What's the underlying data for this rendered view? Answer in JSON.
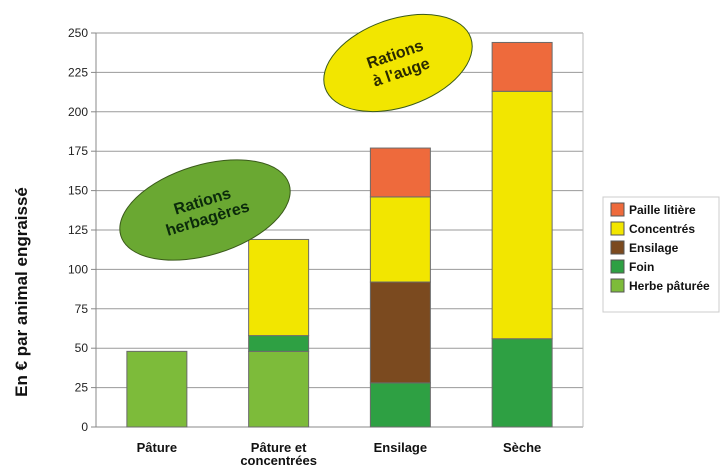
{
  "chart_data": {
    "type": "bar",
    "stacked": true,
    "categories": [
      "Pâture",
      "Pâture et concentrées",
      "Ensilage",
      "Sèche"
    ],
    "category_lines": [
      [
        "Pâture"
      ],
      [
        "Pâture et",
        "concentrées"
      ],
      [
        "Ensilage"
      ],
      [
        "Sèche"
      ]
    ],
    "series": [
      {
        "name": "Herbe pâturée",
        "color": "#7dbb3a",
        "values": [
          48,
          48,
          0,
          0
        ]
      },
      {
        "name": "Foin",
        "color": "#2ea043",
        "values": [
          0,
          10,
          28,
          56
        ]
      },
      {
        "name": "Ensilage",
        "color": "#7b4a1f",
        "values": [
          0,
          0,
          64,
          0
        ]
      },
      {
        "name": "Concentrés",
        "color": "#f2e600",
        "values": [
          0,
          61,
          54,
          157
        ]
      },
      {
        "name": "Paille litière",
        "color": "#ee6a3c",
        "values": [
          0,
          0,
          31,
          31
        ]
      }
    ],
    "ylabel": "En € par animal engraissé",
    "ylim": [
      0,
      250
    ],
    "yticks": [
      0,
      25,
      50,
      75,
      100,
      125,
      150,
      175,
      200,
      225,
      250
    ],
    "grid": true,
    "legend": "right",
    "annotations": [
      {
        "id": "herbagere",
        "lines": [
          "Rations",
          "herbagères"
        ],
        "fill": "#6aa832",
        "text_color": "#0b2a0b"
      },
      {
        "id": "auge",
        "lines": [
          "Rations",
          "à l'auge"
        ],
        "fill": "#f2e600",
        "text_color": "#2a2a00"
      }
    ]
  }
}
